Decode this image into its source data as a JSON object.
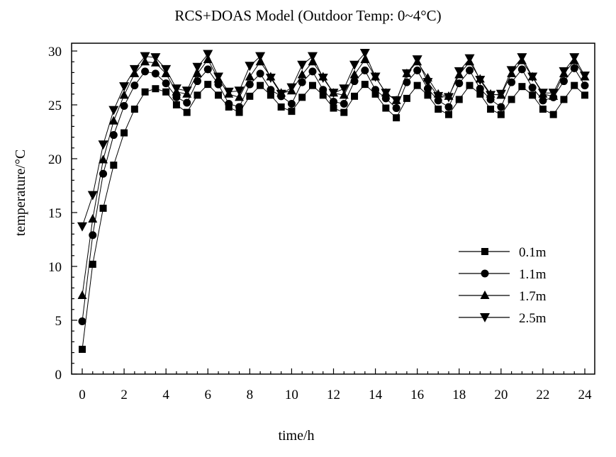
{
  "chart_data": {
    "type": "line",
    "title": "RCS+DOAS Model (Outdoor Temp: 0~4°C)",
    "xlabel": "time/h",
    "ylabel": "temperature/°C",
    "xlim": [
      -0.5,
      24.5
    ],
    "ylim": [
      0,
      30.5
    ],
    "x_ticks": [
      0,
      2,
      4,
      6,
      8,
      10,
      12,
      14,
      16,
      18,
      20,
      22,
      24
    ],
    "y_ticks": [
      0,
      5,
      10,
      15,
      20,
      25,
      30
    ],
    "grid": false,
    "legend_position": "center-right",
    "x": [
      0,
      0.5,
      1,
      1.5,
      2,
      2.5,
      3,
      3.5,
      4,
      4.5,
      5,
      5.5,
      6,
      6.5,
      7,
      7.5,
      8,
      8.5,
      9,
      9.5,
      10,
      10.5,
      11,
      11.5,
      12,
      12.5,
      13,
      13.5,
      14,
      14.5,
      15,
      15.5,
      16,
      16.5,
      17,
      17.5,
      18,
      18.5,
      19,
      19.5,
      20,
      20.5,
      21,
      21.5,
      22,
      22.5,
      23,
      23.5,
      24
    ],
    "series": [
      {
        "name": "0.1m",
        "marker": "square",
        "values": [
          2.3,
          10.2,
          15.4,
          19.4,
          22.4,
          24.6,
          26.2,
          26.5,
          26.2,
          25.0,
          24.3,
          25.9,
          26.9,
          25.9,
          24.8,
          24.3,
          25.8,
          26.8,
          25.9,
          24.8,
          24.4,
          25.7,
          26.8,
          25.9,
          24.7,
          24.3,
          25.8,
          26.9,
          26.0,
          24.7,
          23.8,
          25.6,
          26.8,
          25.9,
          24.6,
          24.1,
          25.5,
          26.8,
          26.0,
          24.6,
          24.1,
          25.5,
          26.7,
          25.9,
          24.6,
          24.1,
          25.5,
          26.8,
          25.9
        ]
      },
      {
        "name": "1.1m",
        "marker": "circle",
        "values": [
          4.9,
          12.9,
          18.6,
          22.2,
          24.9,
          26.8,
          28.1,
          27.9,
          27.0,
          25.7,
          25.2,
          27.2,
          28.3,
          26.9,
          25.1,
          24.8,
          26.9,
          27.9,
          26.4,
          25.8,
          25.1,
          27.1,
          28.1,
          26.4,
          25.3,
          25.1,
          27.2,
          28.2,
          26.4,
          25.6,
          24.7,
          27.1,
          28.2,
          26.5,
          25.4,
          24.8,
          27.0,
          28.2,
          26.5,
          25.5,
          24.8,
          27.1,
          28.3,
          26.6,
          25.4,
          25.7,
          27.2,
          28.4,
          26.8
        ]
      },
      {
        "name": "1.7m",
        "marker": "triangle-up",
        "values": [
          7.3,
          14.4,
          19.9,
          23.5,
          25.9,
          27.9,
          29.0,
          28.9,
          27.9,
          26.2,
          26.0,
          27.9,
          29.2,
          27.4,
          26.0,
          25.7,
          27.6,
          29.0,
          27.6,
          26.1,
          26.3,
          27.8,
          29.0,
          27.6,
          26.1,
          25.9,
          27.8,
          29.2,
          27.6,
          26.1,
          25.4,
          27.9,
          29.0,
          27.5,
          26.0,
          25.8,
          27.8,
          29.0,
          27.4,
          26.0,
          25.9,
          27.9,
          29.1,
          27.6,
          26.0,
          25.8,
          27.9,
          29.1,
          27.6
        ]
      },
      {
        "name": "2.5m",
        "marker": "triangle-down",
        "values": [
          13.7,
          16.6,
          21.3,
          24.5,
          26.7,
          28.3,
          29.5,
          29.4,
          28.3,
          26.5,
          26.3,
          28.5,
          29.7,
          27.6,
          26.2,
          26.3,
          28.6,
          29.5,
          27.5,
          26.0,
          26.6,
          28.7,
          29.5,
          27.5,
          26.1,
          26.5,
          28.7,
          29.8,
          27.6,
          26.1,
          25.4,
          27.9,
          29.2,
          27.1,
          25.8,
          25.7,
          28.1,
          29.3,
          27.3,
          25.9,
          26.0,
          28.2,
          29.4,
          27.6,
          26.1,
          26.1,
          28.1,
          29.4,
          27.7
        ]
      }
    ]
  }
}
